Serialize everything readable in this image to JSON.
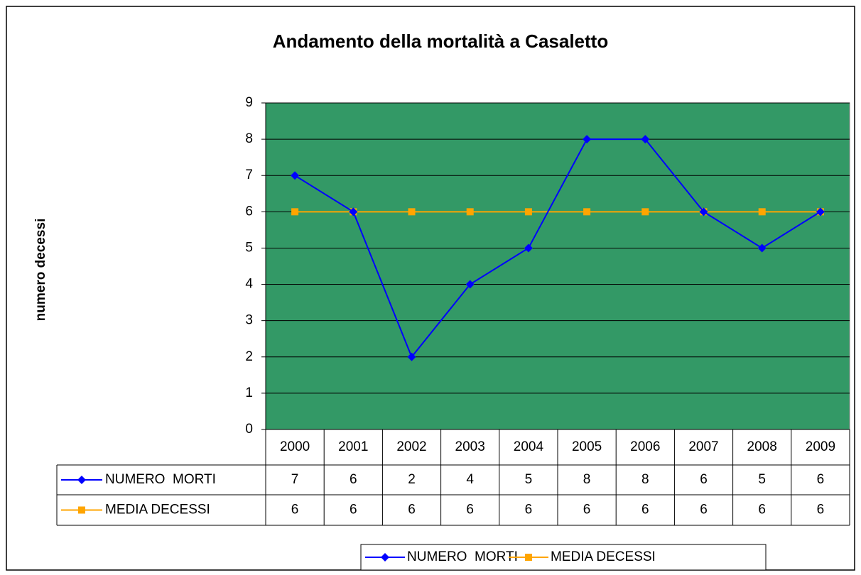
{
  "chart_data": {
    "type": "line",
    "title": "Andamento della mortalità a Casaletto",
    "y_axis_label": "numero decessi",
    "categories": [
      "2000",
      "2001",
      "2002",
      "2003",
      "2004",
      "2005",
      "2006",
      "2007",
      "2008",
      "2009"
    ],
    "series": [
      {
        "name": "NUMERO  MORTI",
        "color": "#0000ff",
        "marker": "diamond",
        "values": [
          7,
          6,
          2,
          4,
          5,
          8,
          8,
          6,
          5,
          6
        ]
      },
      {
        "name": "MEDIA DECESSI",
        "color": "#ffa500",
        "marker": "square",
        "values": [
          6,
          6,
          6,
          6,
          6,
          6,
          6,
          6,
          6,
          6
        ]
      }
    ],
    "ylim": [
      0,
      9
    ],
    "yticks": [
      0,
      1,
      2,
      3,
      4,
      5,
      6,
      7,
      8,
      9
    ],
    "grid": true,
    "plot_background": "#339966",
    "data_table": true,
    "legend": "bottom"
  }
}
